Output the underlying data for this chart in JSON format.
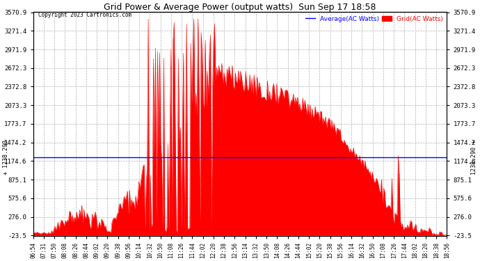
{
  "title": "Grid Power & Average Power (output watts)  Sun Sep 17 18:58",
  "copyright": "Copyright 2023 Cartronics.com",
  "legend_average": "Average(AC Watts)",
  "legend_grid": "Grid(AC Watts)",
  "ymin": -23.5,
  "ymax": 3570.9,
  "yticks": [
    -23.5,
    276.0,
    575.6,
    875.1,
    1174.6,
    1474.2,
    1773.7,
    2073.3,
    2372.8,
    2672.3,
    2971.9,
    3271.4,
    3570.9
  ],
  "average_line_y": 1238.29,
  "average_label": "1238.290",
  "background_color": "#ffffff",
  "grid_color": "#b0b0b0",
  "fill_color": "#ff0000",
  "line_color": "#ff0000",
  "average_color": "#0000ff",
  "title_color": "#000000",
  "xtick_labels": [
    "06:54",
    "07:31",
    "07:50",
    "08:08",
    "08:26",
    "08:44",
    "09:02",
    "09:20",
    "09:38",
    "09:56",
    "10:14",
    "10:32",
    "10:50",
    "11:08",
    "11:26",
    "11:44",
    "12:02",
    "12:20",
    "12:38",
    "12:56",
    "13:14",
    "13:32",
    "13:50",
    "14:08",
    "14:26",
    "14:44",
    "15:02",
    "15:20",
    "15:38",
    "15:56",
    "16:14",
    "16:32",
    "16:50",
    "17:08",
    "17:26",
    "17:44",
    "18:02",
    "18:20",
    "18:38",
    "18:56"
  ],
  "n_points": 400
}
